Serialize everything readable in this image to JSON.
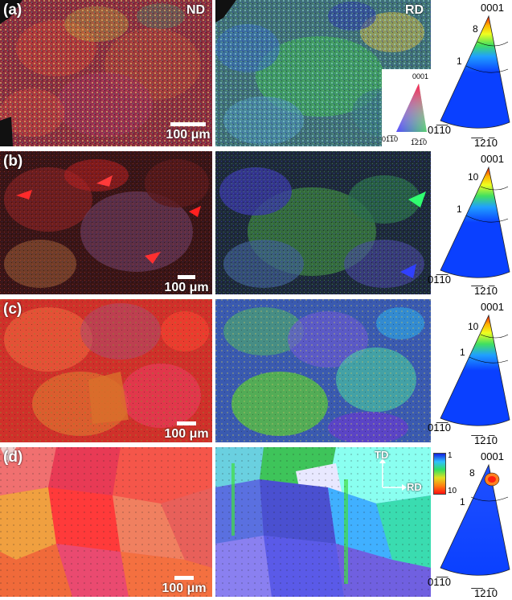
{
  "panels": [
    {
      "label": "(a)",
      "scale": "100 μm",
      "dir_left": "ND",
      "dir_right": "RD",
      "ipf_top": "0001",
      "ipf_levels": [
        "8",
        "1"
      ],
      "ipf_left": "01̅1̅0",
      "ipf_right": "̅1̅21̅0"
    },
    {
      "label": "(b)",
      "scale": "100 μm",
      "ipf_top": "0001",
      "ipf_levels": [
        "10",
        "1"
      ],
      "ipf_left": "01̅1̅0",
      "ipf_right": "̅1̅21̅0"
    },
    {
      "label": "(c)",
      "scale": "100 μm",
      "ipf_top": "0001",
      "ipf_levels": [
        "10",
        "1"
      ],
      "ipf_left": "01̅1̅0",
      "ipf_right": "̅1̅21̅0"
    },
    {
      "label": "(d)",
      "scale": "100 μm",
      "td": "TD",
      "rd": "RD",
      "ipf_top": "0001",
      "ipf_levels": [
        "8",
        "1"
      ],
      "ipf_left": "01̅1̅0",
      "ipf_right": "̅1̅21̅0",
      "colorbar_max": "1",
      "colorbar_min": "10"
    }
  ],
  "color_key": {
    "top": "0001",
    "left": "01̅1̅0",
    "right": "1̅21̅0"
  },
  "colors": {
    "nd_a": "#b0303a",
    "rd_a": "#4aa87a",
    "nd_d": "#f0504a",
    "rd_d": "#7a78e6"
  }
}
